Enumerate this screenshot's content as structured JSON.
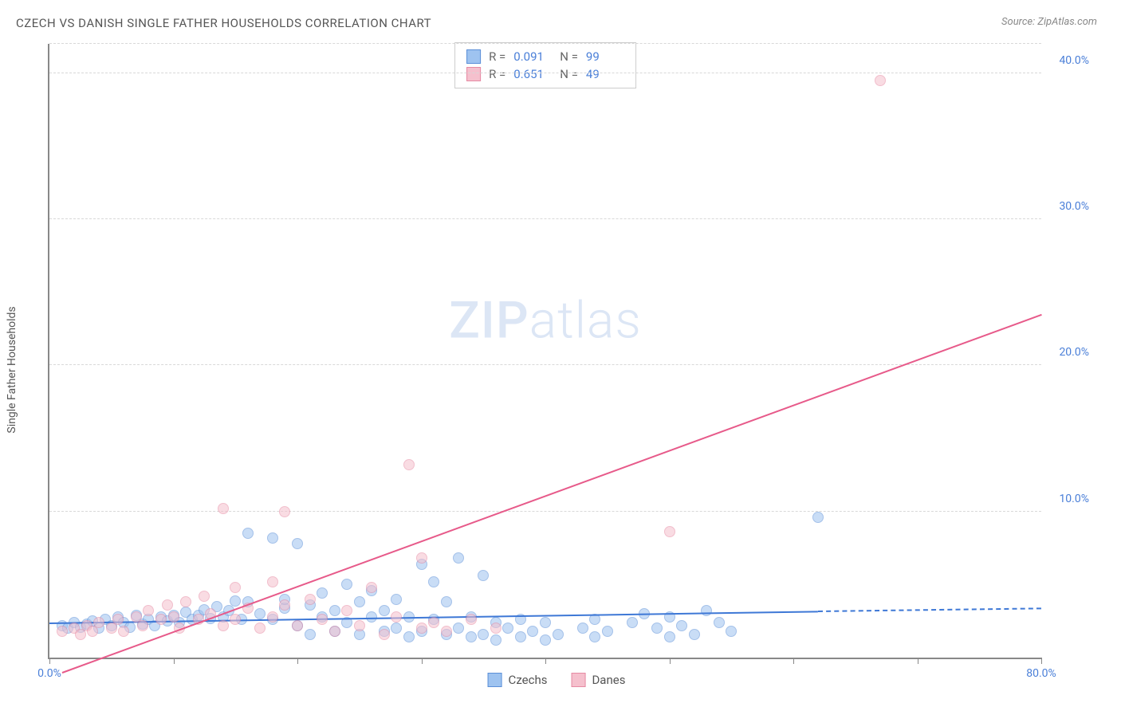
{
  "title": "CZECH VS DANISH SINGLE FATHER HOUSEHOLDS CORRELATION CHART",
  "source": "Source: ZipAtlas.com",
  "y_axis_label": "Single Father Households",
  "watermark_bold": "ZIP",
  "watermark_light": "atlas",
  "chart": {
    "type": "scatter",
    "background_color": "#ffffff",
    "grid_color": "#d8d8d8",
    "axis_color": "#888888",
    "xlim": [
      0,
      80
    ],
    "ylim": [
      0,
      42
    ],
    "xticks": [
      0,
      10,
      20,
      30,
      40,
      50,
      60,
      70,
      80
    ],
    "xtick_labels": {
      "0": "0.0%",
      "80": "80.0%"
    },
    "yticks": [
      10,
      20,
      30,
      40
    ],
    "ytick_labels": {
      "10": "10.0%",
      "20": "20.0%",
      "30": "30.0%",
      "40": "40.0%"
    },
    "marker_radius": 7,
    "marker_opacity": 0.55,
    "series": [
      {
        "name": "Czechs",
        "fill": "#9ec3f0",
        "stroke": "#5b8fd8",
        "R": "0.091",
        "N": "99",
        "trend": {
          "x1": 0,
          "y1": 2.4,
          "x2": 62,
          "y2": 3.2,
          "x2_dash": 80,
          "y2_dash": 3.4,
          "color": "#3e78d6",
          "width": 2
        },
        "points": [
          [
            1,
            2.2
          ],
          [
            1.5,
            2.0
          ],
          [
            2,
            2.4
          ],
          [
            2.5,
            2.1
          ],
          [
            3,
            2.3
          ],
          [
            3.5,
            2.5
          ],
          [
            4,
            2.0
          ],
          [
            4.5,
            2.6
          ],
          [
            5,
            2.2
          ],
          [
            5.5,
            2.8
          ],
          [
            6,
            2.4
          ],
          [
            6.5,
            2.1
          ],
          [
            7,
            2.9
          ],
          [
            7.5,
            2.3
          ],
          [
            8,
            2.6
          ],
          [
            8.5,
            2.2
          ],
          [
            9,
            2.8
          ],
          [
            9.5,
            2.5
          ],
          [
            10,
            2.9
          ],
          [
            10.5,
            2.4
          ],
          [
            11,
            3.1
          ],
          [
            11.5,
            2.6
          ],
          [
            12,
            2.9
          ],
          [
            12.5,
            3.3
          ],
          [
            13,
            2.7
          ],
          [
            13.5,
            3.5
          ],
          [
            14,
            2.8
          ],
          [
            14.5,
            3.2
          ],
          [
            15,
            3.9
          ],
          [
            15.5,
            2.6
          ],
          [
            16,
            8.5
          ],
          [
            16,
            3.8
          ],
          [
            17,
            3.0
          ],
          [
            18,
            2.6
          ],
          [
            18,
            8.2
          ],
          [
            19,
            3.4
          ],
          [
            19,
            4.0
          ],
          [
            20,
            2.2
          ],
          [
            20,
            7.8
          ],
          [
            21,
            3.6
          ],
          [
            21,
            1.6
          ],
          [
            22,
            2.8
          ],
          [
            22,
            4.4
          ],
          [
            23,
            3.2
          ],
          [
            23,
            1.8
          ],
          [
            24,
            5.0
          ],
          [
            24,
            2.4
          ],
          [
            25,
            3.8
          ],
          [
            25,
            1.6
          ],
          [
            26,
            2.8
          ],
          [
            26,
            4.6
          ],
          [
            27,
            1.8
          ],
          [
            27,
            3.2
          ],
          [
            28,
            2.0
          ],
          [
            28,
            4.0
          ],
          [
            29,
            1.4
          ],
          [
            29,
            2.8
          ],
          [
            30,
            6.4
          ],
          [
            30,
            1.8
          ],
          [
            31,
            2.6
          ],
          [
            31,
            5.2
          ],
          [
            32,
            1.6
          ],
          [
            32,
            3.8
          ],
          [
            33,
            2.0
          ],
          [
            33,
            6.8
          ],
          [
            34,
            1.4
          ],
          [
            34,
            2.8
          ],
          [
            35,
            5.6
          ],
          [
            35,
            1.6
          ],
          [
            36,
            2.4
          ],
          [
            36,
            1.2
          ],
          [
            37,
            2.0
          ],
          [
            38,
            1.4
          ],
          [
            38,
            2.6
          ],
          [
            39,
            1.8
          ],
          [
            40,
            1.2
          ],
          [
            40,
            2.4
          ],
          [
            41,
            1.6
          ],
          [
            43,
            2.0
          ],
          [
            44,
            1.4
          ],
          [
            44,
            2.6
          ],
          [
            45,
            1.8
          ],
          [
            47,
            2.4
          ],
          [
            48,
            3.0
          ],
          [
            49,
            2.0
          ],
          [
            50,
            1.4
          ],
          [
            50,
            2.8
          ],
          [
            51,
            2.2
          ],
          [
            52,
            1.6
          ],
          [
            53,
            3.2
          ],
          [
            54,
            2.4
          ],
          [
            55,
            1.8
          ],
          [
            62,
            9.6
          ]
        ]
      },
      {
        "name": "Danes",
        "fill": "#f5c0cd",
        "stroke": "#e68aa3",
        "R": "0.651",
        "N": "49",
        "trend": {
          "x1": 1,
          "y1": -1.0,
          "x2": 80,
          "y2": 23.5,
          "color": "#e75a8a",
          "width": 2
        },
        "points": [
          [
            1,
            1.8
          ],
          [
            2,
            2.0
          ],
          [
            2.5,
            1.6
          ],
          [
            3,
            2.2
          ],
          [
            3.5,
            1.8
          ],
          [
            4,
            2.4
          ],
          [
            5,
            2.0
          ],
          [
            5.5,
            2.6
          ],
          [
            6,
            1.8
          ],
          [
            7,
            2.8
          ],
          [
            7.5,
            2.2
          ],
          [
            8,
            3.2
          ],
          [
            9,
            2.6
          ],
          [
            9.5,
            3.6
          ],
          [
            10,
            2.8
          ],
          [
            10.5,
            2.0
          ],
          [
            11,
            3.8
          ],
          [
            12,
            2.6
          ],
          [
            12.5,
            4.2
          ],
          [
            13,
            3.0
          ],
          [
            14,
            2.2
          ],
          [
            14,
            10.2
          ],
          [
            15,
            4.8
          ],
          [
            15,
            2.6
          ],
          [
            16,
            3.4
          ],
          [
            17,
            2.0
          ],
          [
            18,
            5.2
          ],
          [
            18,
            2.8
          ],
          [
            19,
            10.0
          ],
          [
            19,
            3.6
          ],
          [
            20,
            2.2
          ],
          [
            21,
            4.0
          ],
          [
            22,
            2.6
          ],
          [
            23,
            1.8
          ],
          [
            24,
            3.2
          ],
          [
            25,
            2.2
          ],
          [
            26,
            4.8
          ],
          [
            27,
            1.6
          ],
          [
            28,
            2.8
          ],
          [
            29,
            13.2
          ],
          [
            30,
            2.0
          ],
          [
            30,
            6.8
          ],
          [
            31,
            2.4
          ],
          [
            32,
            1.8
          ],
          [
            34,
            2.6
          ],
          [
            36,
            2.0
          ],
          [
            50,
            8.6
          ],
          [
            67,
            39.5
          ]
        ]
      }
    ]
  },
  "stats_labels": {
    "R": "R =",
    "N": "N ="
  },
  "legend": [
    {
      "label": "Czechs",
      "fill": "#9ec3f0",
      "stroke": "#5b8fd8"
    },
    {
      "label": "Danes",
      "fill": "#f5c0cd",
      "stroke": "#e68aa3"
    }
  ]
}
